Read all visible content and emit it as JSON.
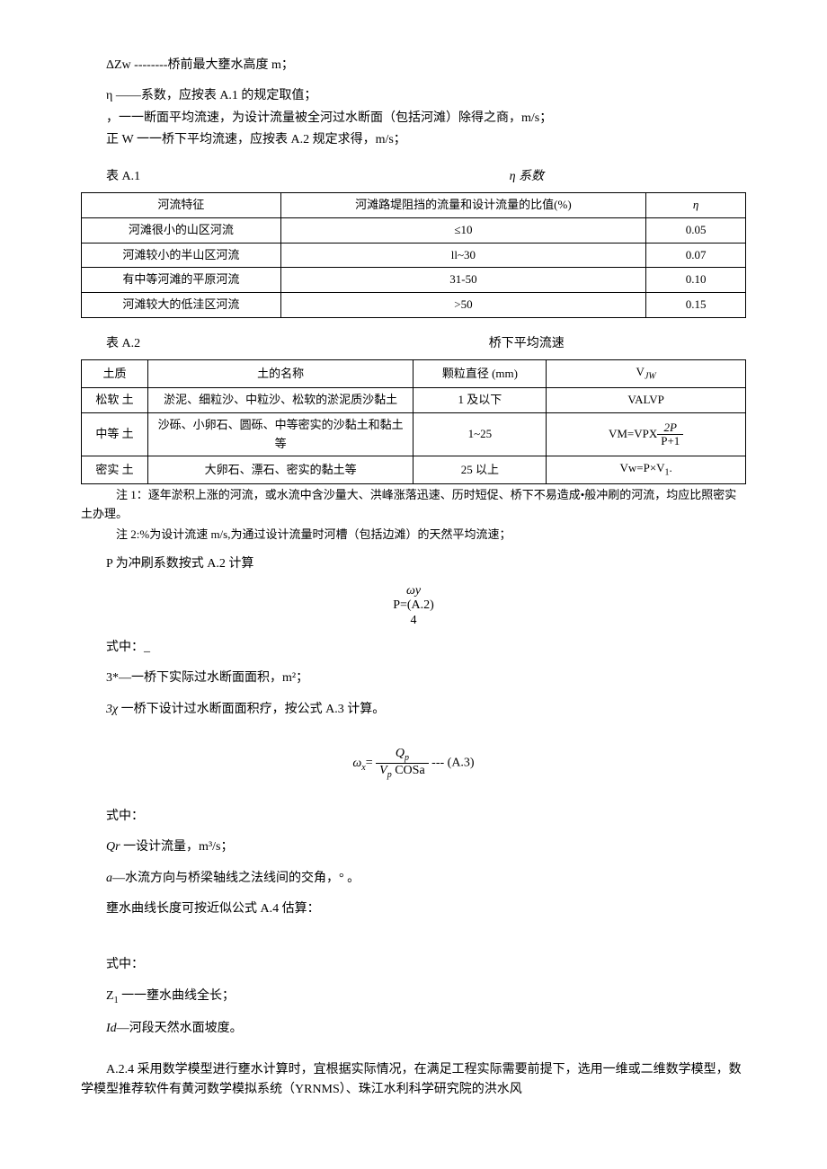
{
  "defs": {
    "dZw": "ΔZw --------桥前最大壅水高度 m；",
    "eta": "η ——系数，应按表 A.1 的规定取值；",
    "v1": "，一一断面平均流速，为设计流量被全河过水断面（包括河滩）除得之商，m/s；",
    "vw": "正 W 一一桥下平均流速，应按表 A.2 规定求得，m/s；"
  },
  "tableA1": {
    "caption_left": "表 A.1",
    "caption_title": "η 系数",
    "header": [
      "河流特征",
      "河滩路堤阻挡的流量和设计流量的比值(%)",
      "η"
    ],
    "rows": [
      [
        "河滩很小的山区河流",
        "≤10",
        "0.05"
      ],
      [
        "河滩较小的半山区河流",
        "ll~30",
        "0.07"
      ],
      [
        "有中等河滩的平原河流",
        "31-50",
        "0.10"
      ],
      [
        "河滩较大的低洼区河流",
        ">50",
        "0.15"
      ]
    ]
  },
  "tableA2": {
    "caption_left": "表 A.2",
    "caption_title": "桥下平均流速",
    "header": [
      "土质",
      "土的名称",
      "颗粒直径 (mm)",
      "VJW"
    ],
    "rows": [
      {
        "c1": "松软 土",
        "c2": "淤泥、细粒沙、中粒沙、松软的淤泥质沙黏土",
        "c3": "1 及以下",
        "c4_plain": "VALVP"
      },
      {
        "c1": "中等 土",
        "c2": "沙砾、小卵石、圆砾、中等密实的沙黏土和黏土等",
        "c3": "1~25",
        "c4_prefix": "VM=VPX",
        "c4_num": "2P",
        "c4_den": "P+1"
      },
      {
        "c1": "密实 土",
        "c2": "大卵石、漂石、密实的黏土等",
        "c3": "25 以上",
        "c4_plain_sub": {
          "pre": "Vw=P×V",
          "sub": "1"
        }
      }
    ],
    "note1": "注 1：逐年淤积上涨的河流，或水流中含沙量大、洪峰涨落迅速、历时短促、桥下不易造成•般冲刷的河流，均应比照密实土办理。",
    "note2": "注 2:%为设计流速 m/s,为通过设计流量时河槽（包括边滩）的天然平均流速；"
  },
  "afterTable": {
    "pline": "P 为冲刷系数按式 A.2 计算",
    "formulaA2": {
      "top": "ωy",
      "mid": "P=(A.2)",
      "bot": "4"
    },
    "shizhong1": "式中：_",
    "line3": "3*—一桥下实际过水断面面积，m²；",
    "line3x": "3χ 一桥下设计过水断面面积疗，按公式 A.3 计算。",
    "formulaA3": {
      "left": "ωx= ",
      "num": "Qp",
      "den": "Vp COSa",
      "right": " --- (A.3)"
    },
    "shizhong2": "式中：",
    "Qr": "Qr 一设计流量，m³/s；",
    "a": "a—水流方向与桥梁轴线之法线间的交角，° 。",
    "len": "壅水曲线长度可按近似公式 A.4 估算：",
    "shizhong3": "式中：",
    "Z1": "Z1 一一壅水曲线全长；",
    "Id": "Id—河段天然水面坡度。",
    "A24": "A.2.4 采用数学模型进行壅水计算时，宜根据实际情况，在满足工程实际需要前提下，选用一维或二维数学模型，数学模型推荐软件有黄河数学模拟系统（YRNMS）、珠江水利科学研究院的洪水风"
  }
}
